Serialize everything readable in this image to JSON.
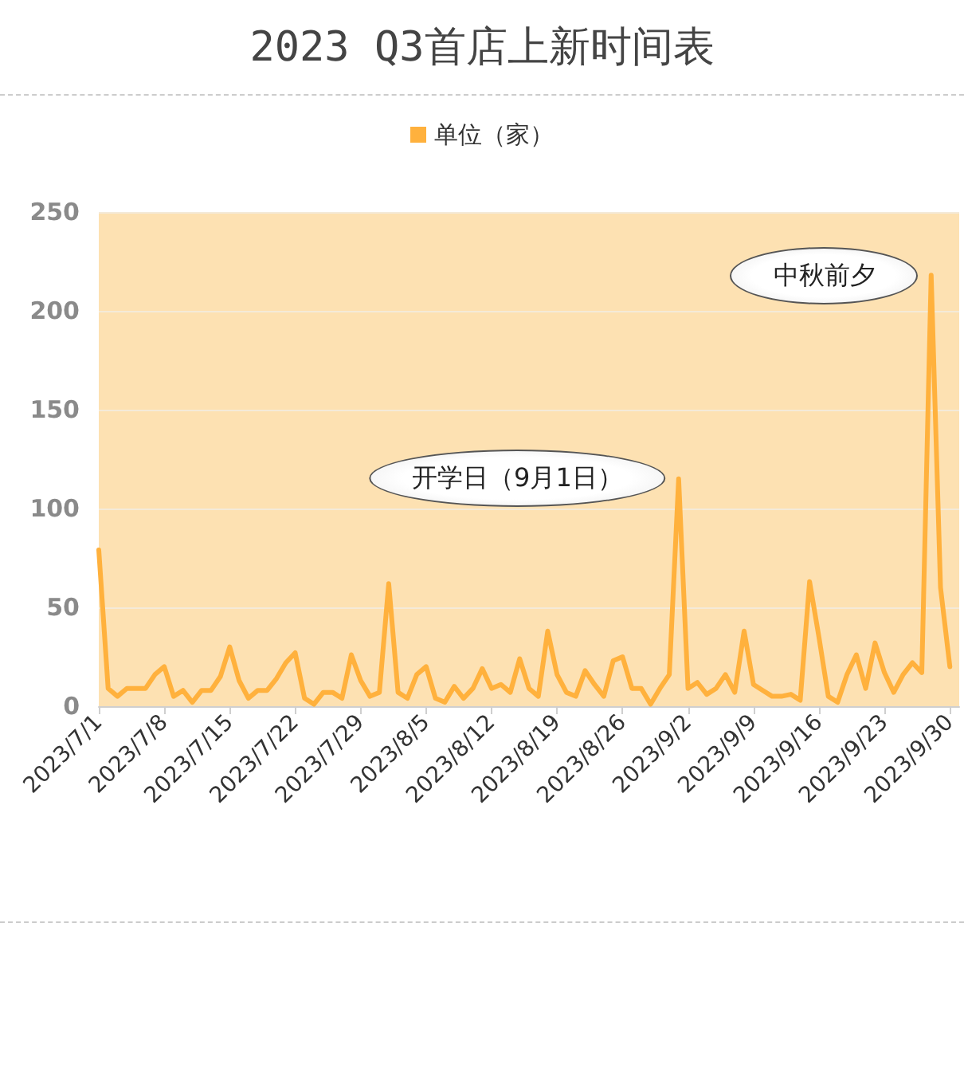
{
  "chart_data": {
    "type": "line",
    "title": "2023 Q3首店上新时间表",
    "x": [
      "2023-07-01",
      "2023-07-02",
      "2023-07-03",
      "2023-07-04",
      "2023-07-05",
      "2023-07-06",
      "2023-07-07",
      "2023-07-08",
      "2023-07-09",
      "2023-07-10",
      "2023-07-11",
      "2023-07-12",
      "2023-07-13",
      "2023-07-14",
      "2023-07-15",
      "2023-07-16",
      "2023-07-17",
      "2023-07-18",
      "2023-07-19",
      "2023-07-20",
      "2023-07-21",
      "2023-07-22",
      "2023-07-23",
      "2023-07-24",
      "2023-07-25",
      "2023-07-26",
      "2023-07-27",
      "2023-07-28",
      "2023-07-29",
      "2023-07-30",
      "2023-07-31",
      "2023-08-01",
      "2023-08-02",
      "2023-08-03",
      "2023-08-04",
      "2023-08-05",
      "2023-08-06",
      "2023-08-07",
      "2023-08-08",
      "2023-08-09",
      "2023-08-10",
      "2023-08-11",
      "2023-08-12",
      "2023-08-13",
      "2023-08-14",
      "2023-08-15",
      "2023-08-16",
      "2023-08-17",
      "2023-08-18",
      "2023-08-19",
      "2023-08-20",
      "2023-08-21",
      "2023-08-22",
      "2023-08-23",
      "2023-08-24",
      "2023-08-25",
      "2023-08-26",
      "2023-08-27",
      "2023-08-28",
      "2023-08-29",
      "2023-08-30",
      "2023-08-31",
      "2023-09-01",
      "2023-09-02",
      "2023-09-03",
      "2023-09-04",
      "2023-09-05",
      "2023-09-06",
      "2023-09-07",
      "2023-09-08",
      "2023-09-09",
      "2023-09-10",
      "2023-09-11",
      "2023-09-12",
      "2023-09-13",
      "2023-09-14",
      "2023-09-15",
      "2023-09-16",
      "2023-09-17",
      "2023-09-18",
      "2023-09-19",
      "2023-09-20",
      "2023-09-21",
      "2023-09-22",
      "2023-09-23",
      "2023-09-24",
      "2023-09-25",
      "2023-09-26",
      "2023-09-27",
      "2023-09-28",
      "2023-09-29",
      "2023-09-30"
    ],
    "series": [
      {
        "name": "单位（家）",
        "color": "#ffb13d",
        "values": [
          79,
          9,
          5,
          9,
          9,
          9,
          16,
          20,
          5,
          8,
          2,
          8,
          8,
          15,
          30,
          13,
          4,
          8,
          8,
          14,
          22,
          27,
          4,
          1,
          7,
          7,
          4,
          26,
          13,
          5,
          7,
          62,
          7,
          4,
          16,
          20,
          4,
          2,
          10,
          4,
          9,
          19,
          9,
          11,
          7,
          24,
          9,
          5,
          38,
          16,
          7,
          5,
          18,
          11,
          5,
          23,
          25,
          9,
          9,
          1,
          9,
          16,
          115,
          9,
          12,
          6,
          9,
          16,
          7,
          38,
          11,
          8,
          5,
          5,
          6,
          3,
          63,
          35,
          5,
          2,
          16,
          26,
          9,
          32,
          17,
          7,
          16,
          22,
          17,
          218,
          60,
          20
        ]
      }
    ],
    "xlim": [
      "2023-07-01",
      "2023-10-01"
    ],
    "xticks": [
      {
        "value": "2023-07-01",
        "label": "2023/7/1"
      },
      {
        "value": "2023-07-08",
        "label": "2023/7/8"
      },
      {
        "value": "2023-07-15",
        "label": "2023/7/15"
      },
      {
        "value": "2023-07-22",
        "label": "2023/7/22"
      },
      {
        "value": "2023-07-29",
        "label": "2023/7/29"
      },
      {
        "value": "2023-08-05",
        "label": "2023/8/5"
      },
      {
        "value": "2023-08-12",
        "label": "2023/8/12"
      },
      {
        "value": "2023-08-19",
        "label": "2023/8/19"
      },
      {
        "value": "2023-08-26",
        "label": "2023/8/26"
      },
      {
        "value": "2023-09-02",
        "label": "2023/9/2"
      },
      {
        "value": "2023-09-09",
        "label": "2023/9/9"
      },
      {
        "value": "2023-09-16",
        "label": "2023/9/16"
      },
      {
        "value": "2023-09-23",
        "label": "2023/9/23"
      },
      {
        "value": "2023-09-30",
        "label": "2023/9/30"
      }
    ],
    "ylim": [
      0,
      250
    ],
    "yticks": [
      0,
      50,
      100,
      150,
      200,
      250
    ],
    "grid": "y",
    "legend": "top",
    "marker": "none",
    "line_style": "solid",
    "annotations": [
      {
        "text": "开学日（9月1日）",
        "x": "2023-09-01",
        "y": 115
      },
      {
        "text": "中秋前夕",
        "x": "2023-09-28",
        "y": 218
      }
    ]
  }
}
